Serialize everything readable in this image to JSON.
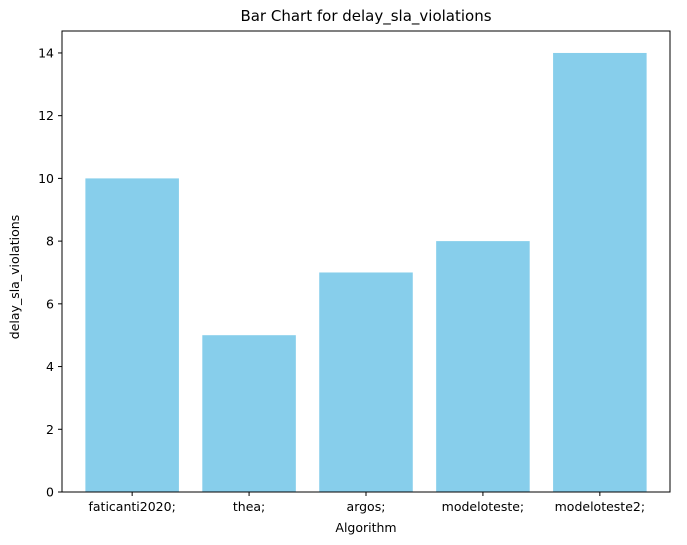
{
  "chart_data": {
    "type": "bar",
    "title": "Bar Chart for delay_sla_violations",
    "xlabel": "Algorithm",
    "ylabel": "delay_sla_violations",
    "categories": [
      "faticanti2020;",
      "thea;",
      "argos;",
      "modeloteste;",
      "modeloteste2;"
    ],
    "values": [
      10,
      5,
      7,
      8,
      14
    ],
    "ylim": [
      0,
      14.7
    ],
    "yticks": [
      0,
      2,
      4,
      6,
      8,
      10,
      12,
      14
    ],
    "bar_color": "#87ceeb",
    "grid": false,
    "legend": "none"
  }
}
